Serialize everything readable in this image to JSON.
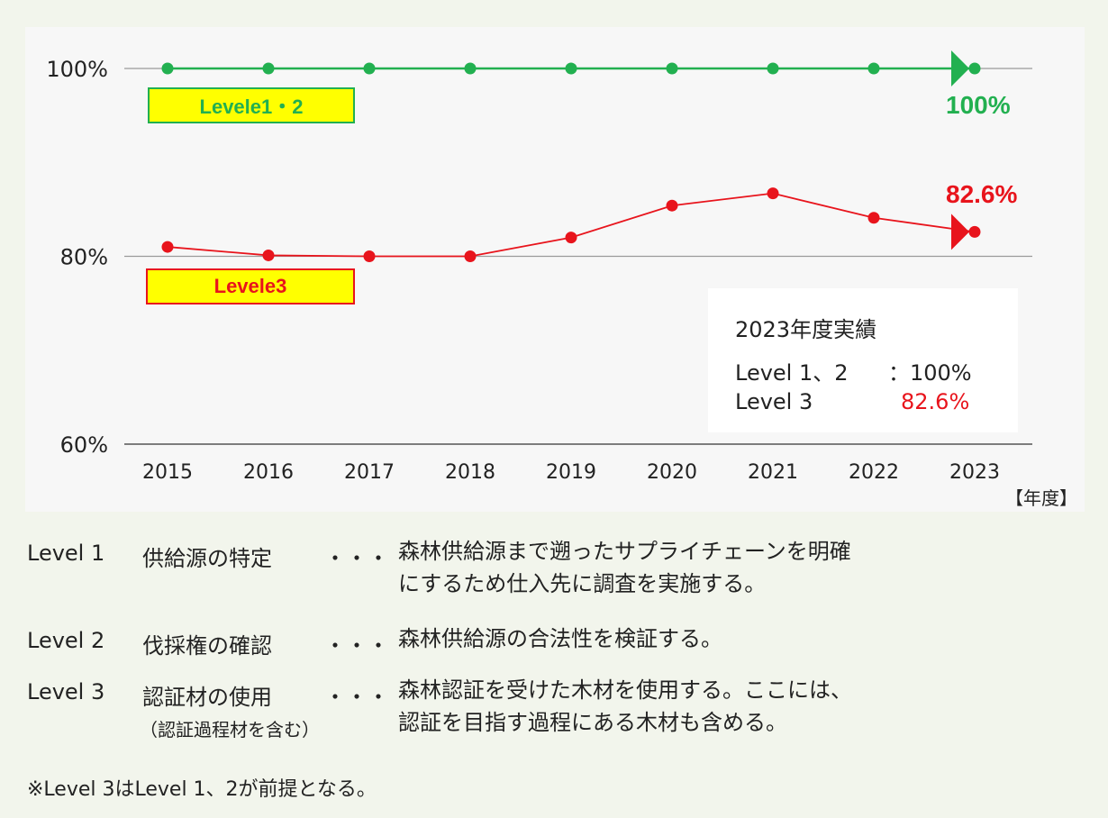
{
  "chart_data": {
    "type": "line",
    "x": [
      "2015",
      "2016",
      "2017",
      "2018",
      "2019",
      "2020",
      "2021",
      "2022",
      "2023"
    ],
    "y_ticks": [
      "100%",
      "80%",
      "60%"
    ],
    "ylim": [
      60,
      100
    ],
    "x_unit_label": "【年度】",
    "grid": "horizontal",
    "series": [
      {
        "name": "Levele1・2",
        "color": "#22b050",
        "values": [
          100,
          100,
          100,
          100,
          100,
          100,
          100,
          100,
          100
        ],
        "end_label": "100%"
      },
      {
        "name": "Levele3",
        "color": "#e8141c",
        "values": [
          81.0,
          80.1,
          80.0,
          80.0,
          82.0,
          85.4,
          86.7,
          84.1,
          82.6
        ],
        "end_label": "82.6%"
      }
    ]
  },
  "result_box": {
    "title": "2023年度実績",
    "level12_label": "Level 1、2",
    "level12_value": "：100%",
    "level3_label": "Level 3",
    "level3_value": "82.6%"
  },
  "definitions": [
    {
      "level": "Level 1",
      "name": "供給源の特定",
      "dots": "・・・",
      "desc": [
        "森林供給源まで遡ったサプライチェーンを明確",
        "にするため仕入先に調査を実施する。"
      ],
      "sub": ""
    },
    {
      "level": "Level 2",
      "name": "伐採権の確認",
      "dots": "・・・",
      "desc": [
        "森林供給源の合法性を検証する。"
      ],
      "sub": ""
    },
    {
      "level": "Level 3",
      "name": "認証材の使用",
      "dots": "・・・",
      "desc": [
        "森林認証を受けた木材を使用する。ここには、",
        "認証を目指す過程にある木材も含める。"
      ],
      "sub": "（認証過程材を含む）"
    }
  ],
  "footnote": "※Level 3はLevel 1、2が前提となる。"
}
